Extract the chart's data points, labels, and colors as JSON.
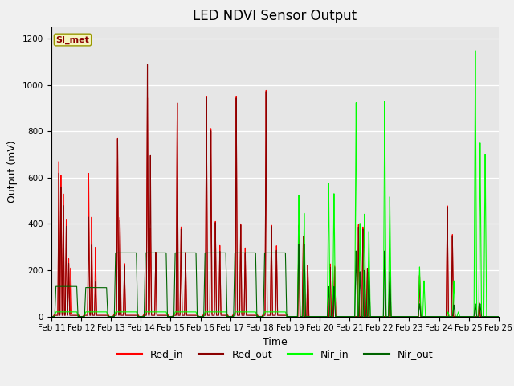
{
  "title": "LED NDVI Sensor Output",
  "xlabel": "Time",
  "ylabel": "Output (mV)",
  "ylim": [
    0,
    1250
  ],
  "yticks": [
    0,
    200,
    400,
    600,
    800,
    1000,
    1200
  ],
  "xtick_labels": [
    "Feb 11",
    "Feb 12",
    "Feb 13",
    "Feb 14",
    "Feb 15",
    "Feb 16",
    "Feb 17",
    "Feb 18",
    "Feb 19",
    "Feb 20",
    "Feb 21",
    "Feb 22",
    "Feb 23",
    "Feb 24",
    "Feb 25",
    "Feb 26"
  ],
  "axes_bg_color": "#e6e6e6",
  "fig_bg_color": "#f0f0f0",
  "si_met_label": "SI_met",
  "legend_entries": [
    "Red_in",
    "Red_out",
    "Nir_in",
    "Nir_out"
  ],
  "line_colors": [
    "#ff0000",
    "#8b0000",
    "#00ff00",
    "#006400"
  ],
  "title_fontsize": 12,
  "label_fontsize": 9,
  "tick_fontsize": 7.5,
  "legend_fontsize": 9
}
